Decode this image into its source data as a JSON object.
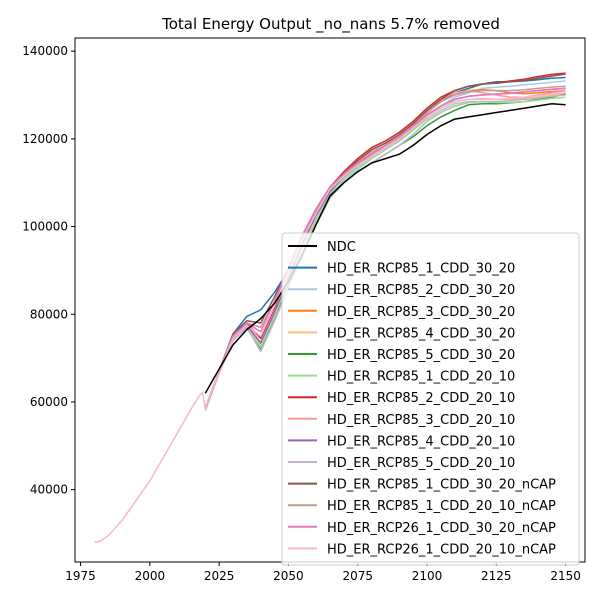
{
  "chart_data": {
    "type": "line",
    "title": "Total Energy Output _no_nans 5.7% removed",
    "xlabel": "",
    "ylabel": "",
    "xlim": [
      1973,
      2157
    ],
    "ylim": [
      23500,
      143000
    ],
    "xticks": [
      1975,
      2000,
      2025,
      2050,
      2075,
      2100,
      2125,
      2150
    ],
    "yticks": [
      40000,
      60000,
      80000,
      100000,
      120000,
      140000
    ],
    "legend_position": "lower-right",
    "grid": false,
    "historical": {
      "x": [
        1980,
        1982,
        1985,
        1990,
        1995,
        2000,
        2005,
        2010,
        2015,
        2018,
        2019,
        2020
      ],
      "y": [
        28000,
        28200,
        29500,
        33000,
        37500,
        42000,
        47500,
        53000,
        58500,
        61500,
        62200,
        58500
      ]
    },
    "series": [
      {
        "name": "NDC",
        "color": "#000000",
        "x": [
          2020,
          2025,
          2030,
          2035,
          2040,
          2045,
          2050,
          2055,
          2060,
          2065,
          2070,
          2075,
          2080,
          2085,
          2090,
          2095,
          2100,
          2105,
          2110,
          2115,
          2120,
          2125,
          2130,
          2135,
          2140,
          2145,
          2150
        ],
        "y": [
          62000,
          67500,
          73000,
          76500,
          79000,
          82500,
          87500,
          93500,
          100500,
          107000,
          110000,
          112500,
          114500,
          115500,
          116500,
          118500,
          121000,
          123000,
          124500,
          125000,
          125500,
          126000,
          126500,
          127000,
          127500,
          128000,
          127800
        ]
      },
      {
        "name": "HD_ER_RCP85_1_CDD_30_20",
        "color": "#1f77b4",
        "x": [
          2020,
          2025,
          2030,
          2035,
          2040,
          2045,
          2050,
          2055,
          2060,
          2065,
          2070,
          2075,
          2080,
          2085,
          2090,
          2095,
          2100,
          2105,
          2110,
          2115,
          2120,
          2125,
          2130,
          2135,
          2140,
          2145,
          2150
        ],
        "y": [
          58500,
          67000,
          75500,
          79500,
          81000,
          85000,
          90000,
          97000,
          103000,
          108000,
          111000,
          114000,
          116500,
          118500,
          120500,
          123000,
          126000,
          128500,
          130500,
          131500,
          132500,
          133000,
          133000,
          133200,
          133500,
          133800,
          134000
        ]
      },
      {
        "name": "HD_ER_RCP85_2_CDD_30_20",
        "color": "#aec7e8",
        "x": [
          2020,
          2025,
          2030,
          2035,
          2040,
          2045,
          2050,
          2055,
          2060,
          2065,
          2070,
          2075,
          2080,
          2085,
          2090,
          2095,
          2100,
          2105,
          2110,
          2115,
          2120,
          2125,
          2130,
          2135,
          2140,
          2145,
          2150
        ],
        "y": [
          58500,
          67000,
          74500,
          78000,
          73000,
          80000,
          87500,
          94500,
          101500,
          107000,
          110500,
          113000,
          115500,
          117500,
          119500,
          122000,
          125000,
          127500,
          129500,
          130500,
          131500,
          131800,
          132000,
          132300,
          132600,
          132900,
          133200
        ]
      },
      {
        "name": "HD_ER_RCP85_3_CDD_30_20",
        "color": "#ff7f0e",
        "x": [
          2020,
          2025,
          2030,
          2035,
          2040,
          2045,
          2050,
          2055,
          2060,
          2065,
          2070,
          2075,
          2080,
          2085,
          2090,
          2095,
          2100,
          2105,
          2110,
          2115,
          2120,
          2125,
          2130,
          2135,
          2140,
          2145,
          2150
        ],
        "y": [
          58500,
          67000,
          74500,
          77000,
          73500,
          80500,
          88500,
          96000,
          102500,
          108000,
          111500,
          114000,
          116500,
          118500,
          120500,
          123000,
          126000,
          128500,
          130000,
          131000,
          131200,
          131000,
          130500,
          130300,
          130500,
          130800,
          131000
        ]
      },
      {
        "name": "HD_ER_RCP85_4_CDD_30_20",
        "color": "#ffbb78",
        "x": [
          2020,
          2025,
          2030,
          2035,
          2040,
          2045,
          2050,
          2055,
          2060,
          2065,
          2070,
          2075,
          2080,
          2085,
          2090,
          2095,
          2100,
          2105,
          2110,
          2115,
          2120,
          2125,
          2130,
          2135,
          2140,
          2145,
          2150
        ],
        "y": [
          58500,
          67000,
          74500,
          77000,
          72500,
          79500,
          87500,
          95000,
          101500,
          107500,
          111000,
          113500,
          115500,
          117500,
          119500,
          122000,
          125000,
          127000,
          128500,
          129000,
          129200,
          129000,
          129000,
          129300,
          129600,
          130000,
          130300
        ]
      },
      {
        "name": "HD_ER_RCP85_5_CDD_30_20",
        "color": "#2ca02c",
        "x": [
          2020,
          2025,
          2030,
          2035,
          2040,
          2045,
          2050,
          2055,
          2060,
          2065,
          2070,
          2075,
          2080,
          2085,
          2090,
          2095,
          2100,
          2105,
          2110,
          2115,
          2120,
          2125,
          2130,
          2135,
          2140,
          2145,
          2150
        ],
        "y": [
          58500,
          67000,
          74500,
          77000,
          72000,
          79000,
          86500,
          93500,
          100500,
          106500,
          110000,
          112500,
          114500,
          116500,
          118500,
          120500,
          123000,
          125000,
          126500,
          127800,
          128000,
          128000,
          128200,
          128500,
          129000,
          129500,
          130200
        ]
      },
      {
        "name": "HD_ER_RCP85_1_CDD_20_10",
        "color": "#98df8a",
        "x": [
          2020,
          2025,
          2030,
          2035,
          2040,
          2045,
          2050,
          2055,
          2060,
          2065,
          2070,
          2075,
          2080,
          2085,
          2090,
          2095,
          2100,
          2105,
          2110,
          2115,
          2120,
          2125,
          2130,
          2135,
          2140,
          2145,
          2150
        ],
        "y": [
          58500,
          67000,
          74500,
          77000,
          72500,
          79500,
          87500,
          95000,
          101500,
          107500,
          111000,
          113500,
          115500,
          117500,
          119500,
          122000,
          124500,
          126500,
          128000,
          128500,
          128500,
          128300,
          128300,
          128500,
          128800,
          129200,
          129500
        ]
      },
      {
        "name": "HD_ER_RCP85_2_CDD_20_10",
        "color": "#d62728",
        "x": [
          2020,
          2025,
          2030,
          2035,
          2040,
          2045,
          2050,
          2055,
          2060,
          2065,
          2070,
          2075,
          2080,
          2085,
          2090,
          2095,
          2100,
          2105,
          2110,
          2115,
          2120,
          2125,
          2130,
          2135,
          2140,
          2145,
          2150
        ],
        "y": [
          58500,
          67000,
          75000,
          78000,
          74500,
          81500,
          89500,
          97500,
          104000,
          109000,
          112500,
          115500,
          118000,
          119500,
          121500,
          124000,
          127000,
          129500,
          131000,
          132000,
          132500,
          132800,
          133200,
          133600,
          134200,
          134700,
          135000
        ]
      },
      {
        "name": "HD_ER_RCP85_3_CDD_20_10",
        "color": "#ff9896",
        "x": [
          2020,
          2025,
          2030,
          2035,
          2040,
          2045,
          2050,
          2055,
          2060,
          2065,
          2070,
          2075,
          2080,
          2085,
          2090,
          2095,
          2100,
          2105,
          2110,
          2115,
          2120,
          2125,
          2130,
          2135,
          2140,
          2145,
          2150
        ],
        "y": [
          58500,
          67000,
          74500,
          77500,
          73500,
          80500,
          88500,
          96500,
          103000,
          108500,
          112000,
          115000,
          117500,
          119000,
          121000,
          123500,
          126500,
          129000,
          130500,
          131000,
          130500,
          130000,
          129500,
          129500,
          130000,
          130500,
          131000
        ]
      },
      {
        "name": "HD_ER_RCP85_4_CDD_20_10",
        "color": "#9467bd",
        "x": [
          2020,
          2025,
          2030,
          2035,
          2040,
          2045,
          2050,
          2055,
          2060,
          2065,
          2070,
          2075,
          2080,
          2085,
          2090,
          2095,
          2100,
          2105,
          2110,
          2115,
          2120,
          2125,
          2130,
          2135,
          2140,
          2145,
          2150
        ],
        "y": [
          58500,
          67000,
          74500,
          77500,
          73500,
          80500,
          88000,
          96000,
          102500,
          108000,
          111500,
          114000,
          116000,
          118000,
          120000,
          122500,
          125500,
          127500,
          129000,
          129700,
          130000,
          130200,
          130400,
          130700,
          131000,
          131300,
          131500
        ]
      },
      {
        "name": "HD_ER_RCP85_5_CDD_20_10",
        "color": "#c5b0d5",
        "x": [
          2020,
          2025,
          2030,
          2035,
          2040,
          2045,
          2050,
          2055,
          2060,
          2065,
          2070,
          2075,
          2080,
          2085,
          2090,
          2095,
          2100,
          2105,
          2110,
          2115,
          2120,
          2125,
          2130,
          2135,
          2140,
          2145,
          2150
        ],
        "y": [
          58000,
          66500,
          74000,
          77000,
          71500,
          78500,
          86000,
          93500,
          100500,
          106500,
          110000,
          112500,
          114500,
          116500,
          118500,
          121000,
          124000,
          126000,
          127500,
          128300,
          128500,
          128500,
          128700,
          129000,
          129300,
          129700,
          130000
        ]
      },
      {
        "name": "HD_ER_RCP85_1_CDD_30_20_nCAP",
        "color": "#8c564b",
        "x": [
          2020,
          2025,
          2030,
          2035,
          2040,
          2045,
          2050,
          2055,
          2060,
          2065,
          2070,
          2075,
          2080,
          2085,
          2090,
          2095,
          2100,
          2105,
          2110,
          2115,
          2120,
          2125,
          2130,
          2135,
          2140,
          2145,
          2150
        ],
        "y": [
          58500,
          67000,
          75500,
          78500,
          78000,
          84000,
          90500,
          98000,
          104000,
          109000,
          112000,
          115000,
          117500,
          119000,
          121000,
          123500,
          126500,
          129000,
          131000,
          132000,
          132500,
          132700,
          133000,
          133300,
          133800,
          134300,
          134800
        ]
      },
      {
        "name": "HD_ER_RCP85_1_CDD_20_10_nCAP",
        "color": "#c49c94",
        "x": [
          2020,
          2025,
          2030,
          2035,
          2040,
          2045,
          2050,
          2055,
          2060,
          2065,
          2070,
          2075,
          2080,
          2085,
          2090,
          2095,
          2100,
          2105,
          2110,
          2115,
          2120,
          2125,
          2130,
          2135,
          2140,
          2145,
          2150
        ],
        "y": [
          58500,
          67000,
          75000,
          78000,
          77000,
          83000,
          90000,
          97500,
          103500,
          108500,
          111500,
          114500,
          117000,
          118500,
          120500,
          123000,
          126000,
          128500,
          130000,
          130700,
          131000,
          131000,
          131000,
          131200,
          131500,
          131800,
          132000
        ]
      },
      {
        "name": "HD_ER_RCP26_1_CDD_30_20_nCAP",
        "color": "#e377c2",
        "x": [
          2020,
          2025,
          2030,
          2035,
          2040,
          2045,
          2050,
          2055,
          2060,
          2065,
          2070,
          2075,
          2080,
          2085,
          2090,
          2095,
          2100,
          2105,
          2110,
          2115,
          2120,
          2125,
          2130,
          2135,
          2140,
          2145,
          2150
        ],
        "y": [
          58500,
          67000,
          75000,
          78000,
          76000,
          83000,
          90500,
          98000,
          104000,
          109000,
          112000,
          114500,
          116500,
          118500,
          120500,
          123000,
          125500,
          127500,
          129000,
          129700,
          130000,
          130200,
          130400,
          130700,
          131000,
          131300,
          131500
        ]
      },
      {
        "name": "HD_ER_RCP26_1_CDD_20_10_nCAP",
        "color": "#f7b6d2",
        "x": [
          2020,
          2025,
          2030,
          2035,
          2040,
          2045,
          2050,
          2055,
          2060,
          2065,
          2070,
          2075,
          2080,
          2085,
          2090,
          2095,
          2100,
          2105,
          2110,
          2115,
          2120,
          2125,
          2130,
          2135,
          2140,
          2145,
          2150
        ],
        "y": [
          58500,
          67000,
          74500,
          77500,
          75000,
          82000,
          89500,
          97000,
          103000,
          108500,
          111500,
          114000,
          116000,
          118000,
          120000,
          122500,
          125000,
          127000,
          128500,
          129000,
          129000,
          129000,
          129200,
          129500,
          129800,
          130200,
          130500
        ]
      }
    ]
  }
}
